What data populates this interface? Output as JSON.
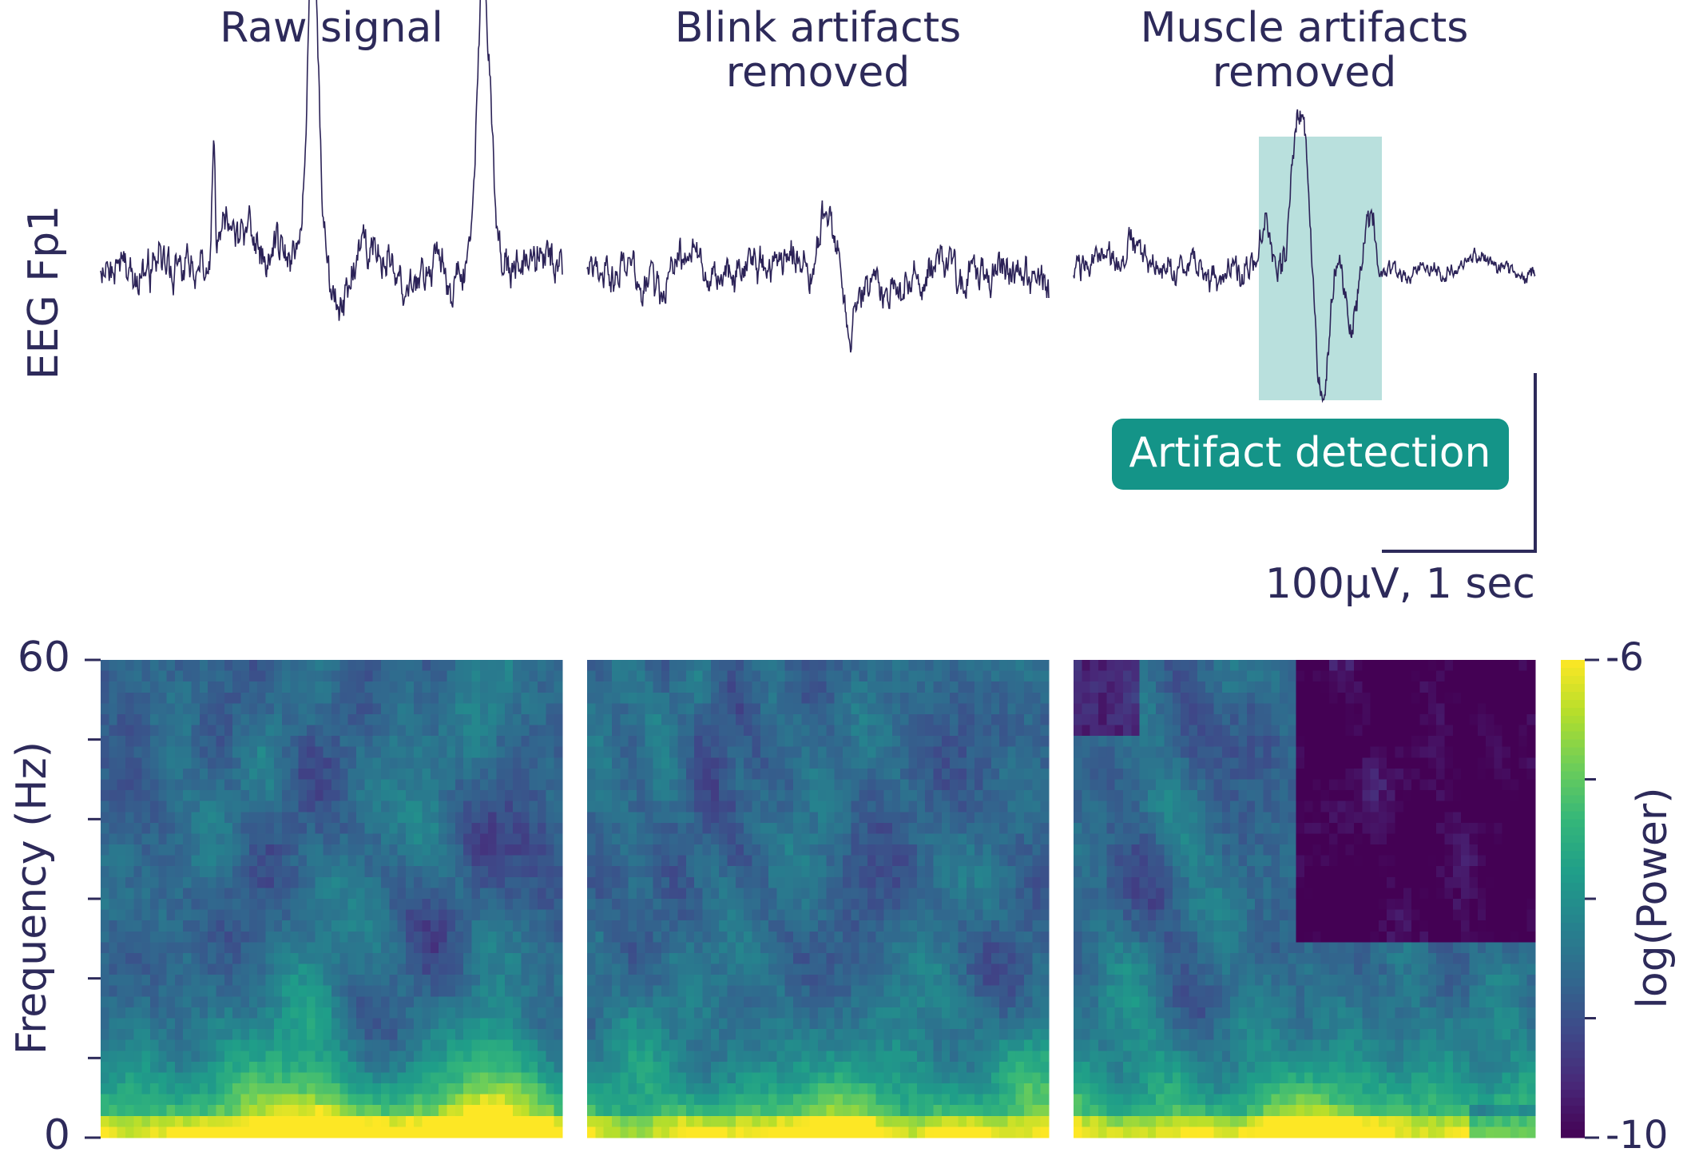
{
  "panels": [
    {
      "title_lines": [
        "Raw signal"
      ]
    },
    {
      "title_lines": [
        "Blink artifacts",
        "removed"
      ]
    },
    {
      "title_lines": [
        "Muscle artifacts",
        "removed"
      ]
    }
  ],
  "trace_label": "EEG Fp1",
  "annotation": "Artifact detection",
  "scale_bar_label": "100μV, 1 sec",
  "chart_data": {
    "type": "spectrogram",
    "ylabel": "Frequency (Hz)",
    "ylim": [
      0,
      60
    ],
    "yticks": [
      0,
      60
    ],
    "yminor_ticks": [
      10,
      20,
      30,
      40,
      50
    ],
    "colorbar": {
      "label": "log(Power)",
      "lim": [
        -10,
        -6
      ],
      "ticks": [
        -10,
        -6
      ],
      "minor_ticks": [
        -9,
        -8,
        -7
      ]
    }
  }
}
